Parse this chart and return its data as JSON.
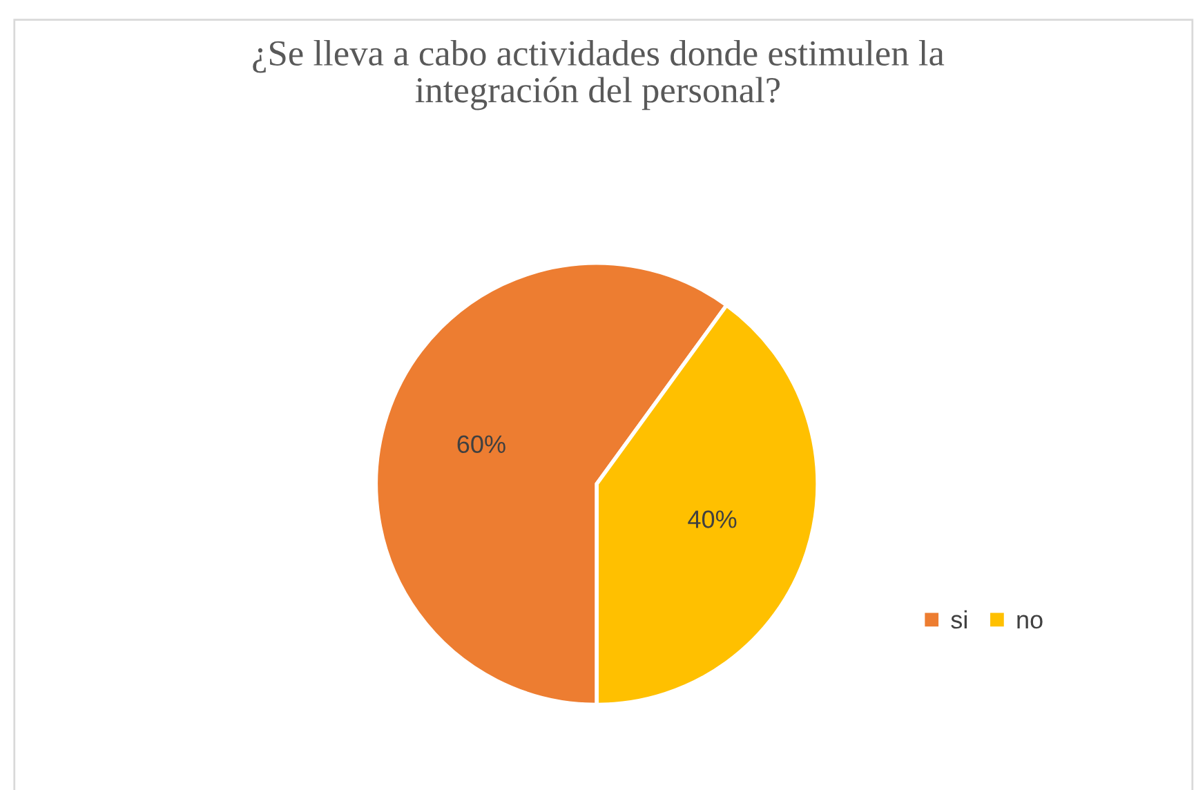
{
  "chart_data": {
    "type": "pie",
    "title": "¿Se lleva a cabo actividades donde estimulen la\nintegración del personal?",
    "categories": [
      "si",
      "no"
    ],
    "values": [
      60,
      40
    ],
    "colors": [
      "#ed7d31",
      "#ffc000"
    ],
    "value_labels": [
      "60%",
      "40%"
    ],
    "legend": "right"
  }
}
